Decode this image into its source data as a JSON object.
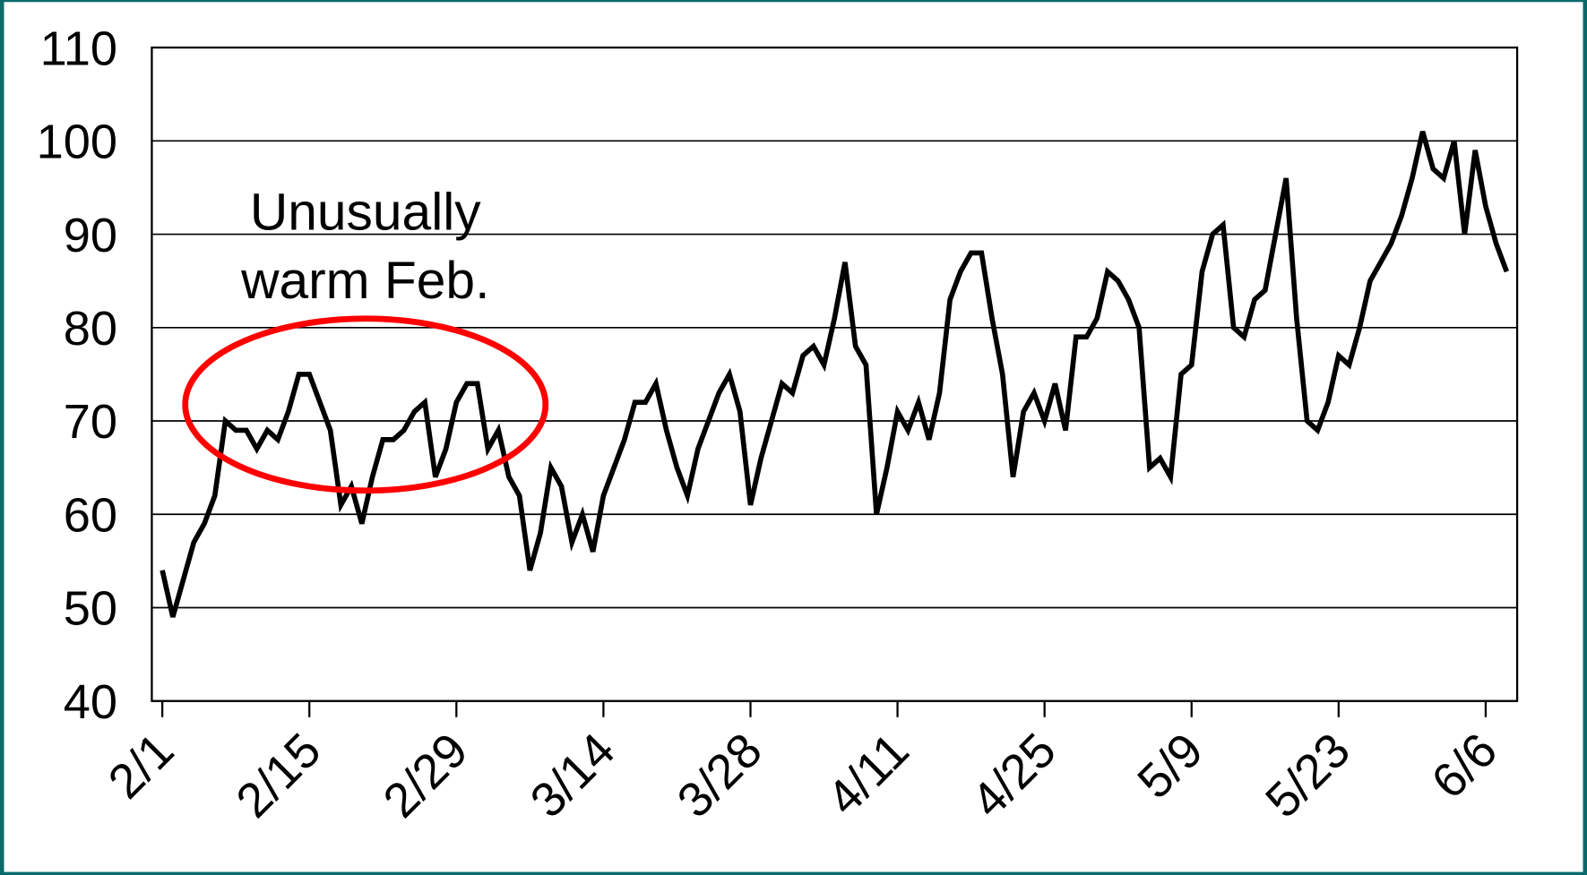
{
  "chart_data": {
    "type": "line",
    "x": [
      "2/1",
      "2/2",
      "2/3",
      "2/4",
      "2/5",
      "2/6",
      "2/7",
      "2/8",
      "2/9",
      "2/10",
      "2/11",
      "2/12",
      "2/13",
      "2/14",
      "2/15",
      "2/16",
      "2/17",
      "2/18",
      "2/19",
      "2/20",
      "2/21",
      "2/22",
      "2/23",
      "2/24",
      "2/25",
      "2/26",
      "2/27",
      "2/28",
      "2/29",
      "3/1",
      "3/2",
      "3/3",
      "3/4",
      "3/5",
      "3/6",
      "3/7",
      "3/8",
      "3/9",
      "3/10",
      "3/11",
      "3/12",
      "3/13",
      "3/14",
      "3/15",
      "3/16",
      "3/17",
      "3/18",
      "3/19",
      "3/20",
      "3/21",
      "3/22",
      "3/23",
      "3/24",
      "3/25",
      "3/26",
      "3/27",
      "3/28",
      "3/29",
      "3/30",
      "3/31",
      "4/1",
      "4/2",
      "4/3",
      "4/4",
      "4/5",
      "4/6",
      "4/7",
      "4/8",
      "4/9",
      "4/10",
      "4/11",
      "4/12",
      "4/13",
      "4/14",
      "4/15",
      "4/16",
      "4/17",
      "4/18",
      "4/19",
      "4/20",
      "4/21",
      "4/22",
      "4/23",
      "4/24",
      "4/25",
      "4/26",
      "4/27",
      "4/28",
      "4/29",
      "4/30",
      "5/1",
      "5/2",
      "5/3",
      "5/4",
      "5/5",
      "5/6",
      "5/7",
      "5/8",
      "5/9",
      "5/10",
      "5/11",
      "5/12",
      "5/13",
      "5/14",
      "5/15",
      "5/16",
      "5/17",
      "5/18",
      "5/19",
      "5/20",
      "5/21",
      "5/22",
      "5/23",
      "5/24",
      "5/25",
      "5/26",
      "5/27",
      "5/28",
      "5/29",
      "5/30",
      "5/31",
      "6/1",
      "6/2",
      "6/3",
      "6/4",
      "6/5",
      "6/6",
      "6/7",
      "6/8"
    ],
    "series": [
      {
        "color": "#000000",
        "values": [
          54,
          49,
          53,
          57,
          59,
          62,
          70,
          69,
          69,
          67,
          69,
          68,
          71,
          75,
          75,
          72,
          69,
          61,
          63,
          59,
          64,
          68,
          68,
          69,
          71,
          72,
          64,
          67,
          72,
          74,
          74,
          67,
          69,
          64,
          62,
          54,
          58,
          65,
          63,
          57,
          60,
          56,
          62,
          65,
          68,
          72,
          72,
          74,
          69,
          65,
          62,
          67,
          70,
          73,
          75,
          71,
          61,
          66,
          70,
          74,
          73,
          77,
          78,
          76,
          81,
          87,
          78,
          76,
          60,
          65,
          71,
          69,
          72,
          68,
          73,
          83,
          86,
          88,
          88,
          81,
          75,
          64,
          71,
          73,
          70,
          74,
          69,
          79,
          79,
          81,
          86,
          85,
          83,
          80,
          65,
          66,
          64,
          75,
          76,
          86,
          90,
          91,
          80,
          79,
          83,
          84,
          90,
          96,
          81,
          70,
          69,
          72,
          77,
          76,
          80,
          85,
          87,
          89,
          92,
          96,
          101,
          97,
          96,
          100,
          90,
          99,
          93,
          89,
          86
        ]
      }
    ],
    "xlim": [
      "1/31",
      "6/9"
    ],
    "xticks": [
      "2/1",
      "2/15",
      "2/29",
      "3/14",
      "3/28",
      "4/11",
      "4/25",
      "5/9",
      "5/23",
      "6/6"
    ],
    "ylim": [
      40,
      110
    ],
    "yticks": [
      40,
      50,
      60,
      70,
      80,
      90,
      100,
      110
    ],
    "grid": true,
    "annotation": [
      "Unusually",
      "warm Feb."
    ],
    "annotation_color": "#ff0000"
  }
}
